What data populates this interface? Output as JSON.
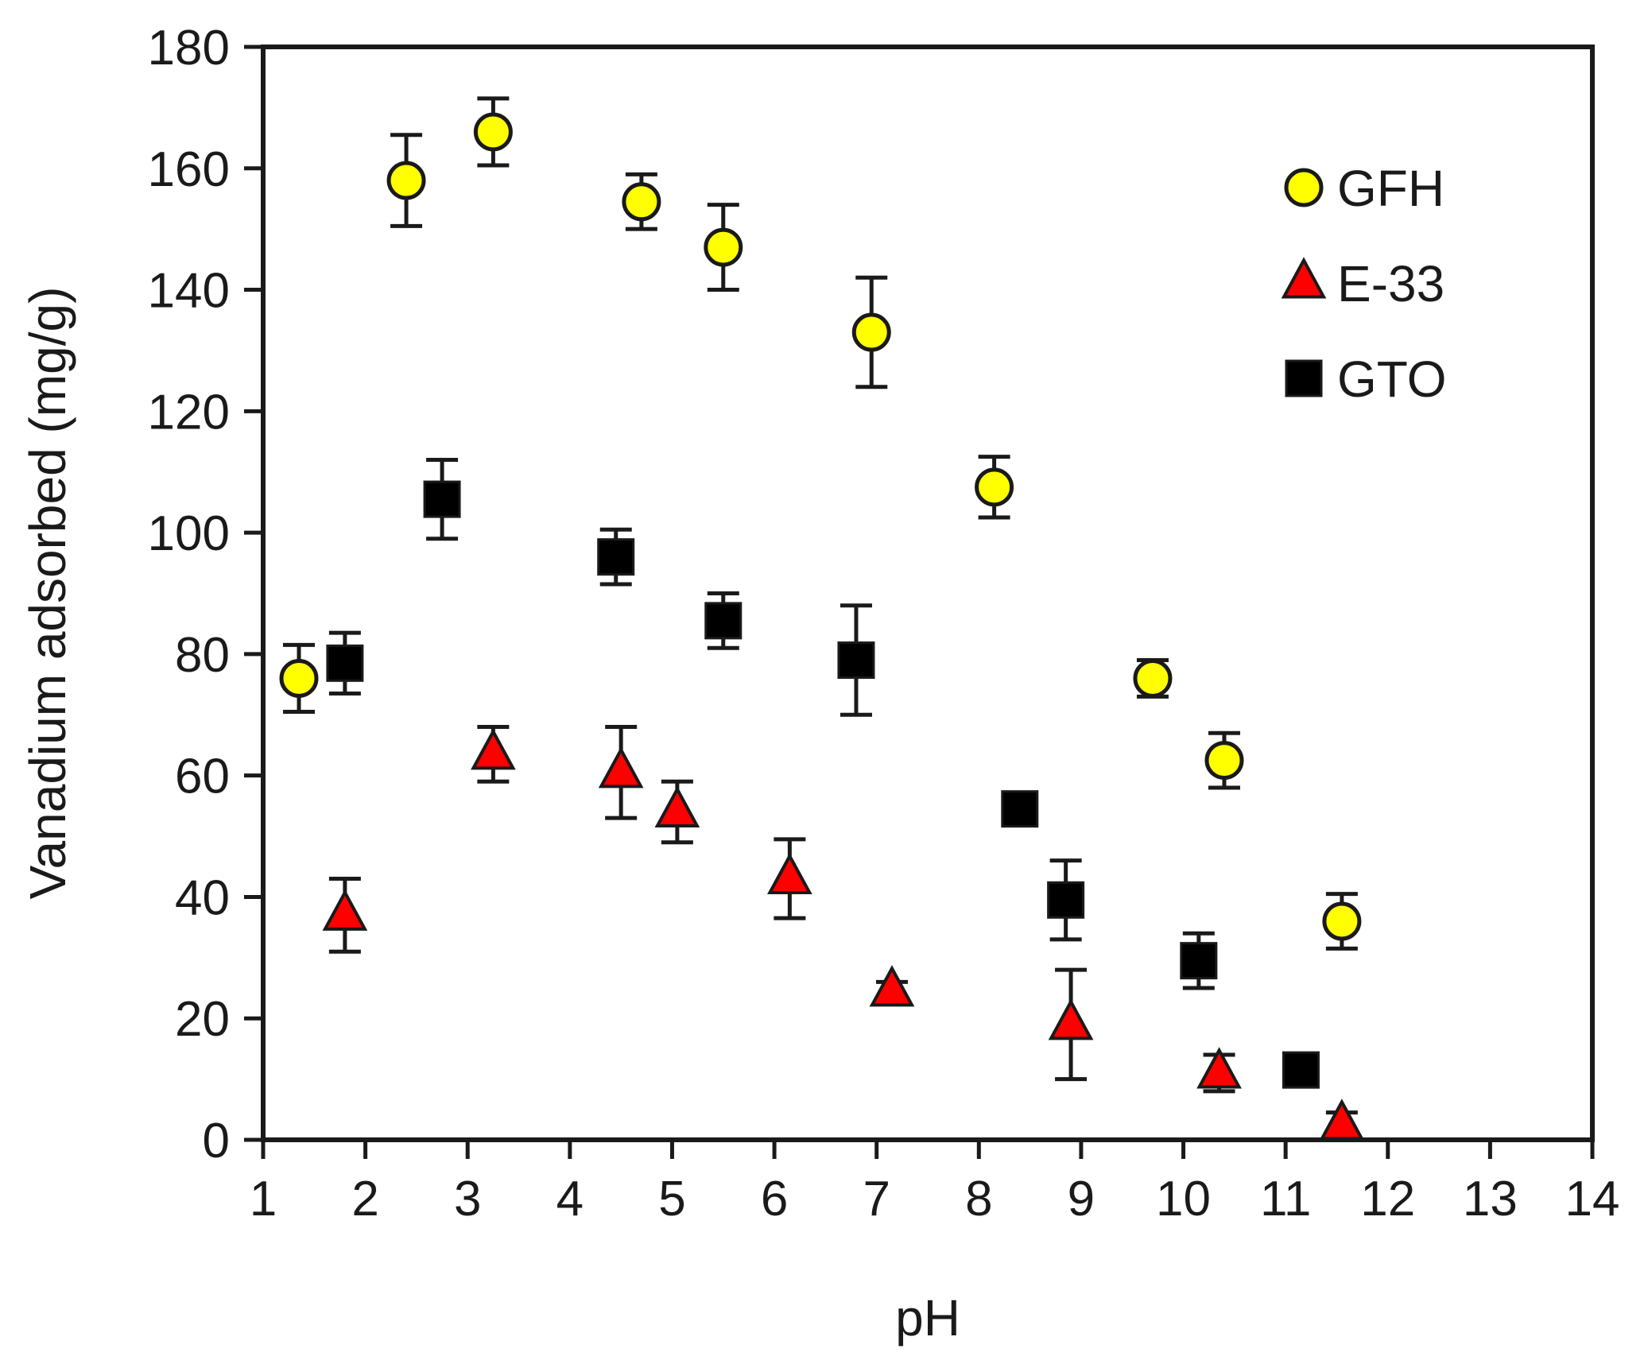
{
  "chart_data": {
    "type": "scatter",
    "title": "",
    "xlabel": "pH",
    "ylabel": "Vanadium adsorbed (mg/g)",
    "xlim": [
      1,
      14
    ],
    "ylim": [
      0,
      180
    ],
    "x_ticks": [
      1,
      2,
      3,
      4,
      5,
      6,
      7,
      8,
      9,
      10,
      11,
      12,
      13,
      14
    ],
    "y_ticks": [
      0,
      20,
      40,
      60,
      80,
      100,
      120,
      140,
      160,
      180
    ],
    "grid": false,
    "legend_position": "top-right",
    "series": [
      {
        "name": "GFH",
        "marker": "circle",
        "color": "#ffff00",
        "points": [
          {
            "x": 1.35,
            "y": 76,
            "err": 5.5
          },
          {
            "x": 2.4,
            "y": 158,
            "err": 7.5
          },
          {
            "x": 3.25,
            "y": 166,
            "err": 5.5
          },
          {
            "x": 4.7,
            "y": 154.5,
            "err": 4.5
          },
          {
            "x": 5.5,
            "y": 147,
            "err": 7
          },
          {
            "x": 6.95,
            "y": 133,
            "err": 9
          },
          {
            "x": 8.15,
            "y": 107.5,
            "err": 5
          },
          {
            "x": 9.7,
            "y": 76,
            "err": 3
          },
          {
            "x": 10.4,
            "y": 62.5,
            "err": 4.5
          },
          {
            "x": 11.55,
            "y": 36,
            "err": 4.5
          }
        ]
      },
      {
        "name": "E-33",
        "marker": "triangle",
        "color": "#ff0000",
        "points": [
          {
            "x": 1.8,
            "y": 37,
            "err": 6
          },
          {
            "x": 3.25,
            "y": 63.5,
            "err": 4.5
          },
          {
            "x": 4.5,
            "y": 60.5,
            "err": 7.5
          },
          {
            "x": 5.05,
            "y": 54,
            "err": 5
          },
          {
            "x": 6.15,
            "y": 43,
            "err": 6.5
          },
          {
            "x": 7.15,
            "y": 24.5,
            "err": 1.5
          },
          {
            "x": 8.9,
            "y": 19,
            "err": 9
          },
          {
            "x": 10.35,
            "y": 11,
            "err": 3
          },
          {
            "x": 11.55,
            "y": 2.5,
            "err": 2
          }
        ]
      },
      {
        "name": "GTO",
        "marker": "square",
        "color": "#000000",
        "points": [
          {
            "x": 1.8,
            "y": 78.5,
            "err": 5
          },
          {
            "x": 2.75,
            "y": 105.5,
            "err": 6.5
          },
          {
            "x": 4.45,
            "y": 96,
            "err": 4.5
          },
          {
            "x": 5.5,
            "y": 85.5,
            "err": 4.5
          },
          {
            "x": 6.8,
            "y": 79,
            "err": 9
          },
          {
            "x": 8.4,
            "y": 54.5,
            "err": 1.5
          },
          {
            "x": 8.85,
            "y": 39.5,
            "err": 6.5
          },
          {
            "x": 10.15,
            "y": 29.5,
            "err": 4.5
          },
          {
            "x": 11.15,
            "y": 11.5,
            "err": 1.5
          }
        ]
      }
    ]
  }
}
